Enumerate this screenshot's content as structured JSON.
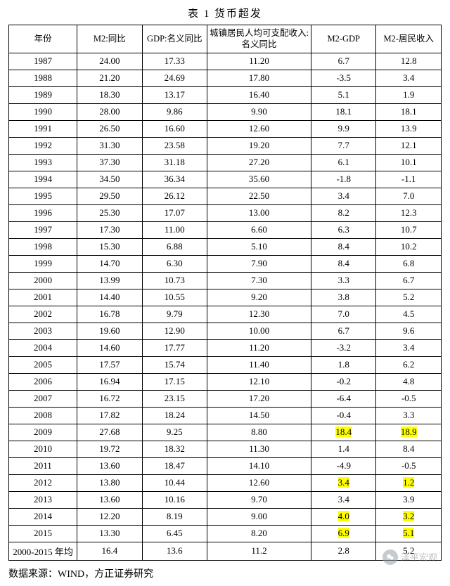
{
  "title": "表 1  货币超发",
  "columns": [
    "年份",
    "M2:同比",
    "GDP:名义同比",
    "城镇居民人均可支配收入:名义同比",
    "M2-GDP",
    "M2-居民收入"
  ],
  "rows": [
    {
      "y": "1987",
      "m2": "24.00",
      "gdp": "17.33",
      "urb": "11.20",
      "mg": "6.7",
      "mi": "12.8"
    },
    {
      "y": "1988",
      "m2": "21.20",
      "gdp": "24.69",
      "urb": "17.80",
      "mg": "-3.5",
      "mi": "3.4"
    },
    {
      "y": "1989",
      "m2": "18.30",
      "gdp": "13.17",
      "urb": "16.40",
      "mg": "5.1",
      "mi": "1.9"
    },
    {
      "y": "1990",
      "m2": "28.00",
      "gdp": "9.86",
      "urb": "9.90",
      "mg": "18.1",
      "mi": "18.1"
    },
    {
      "y": "1991",
      "m2": "26.50",
      "gdp": "16.60",
      "urb": "12.60",
      "mg": "9.9",
      "mi": "13.9"
    },
    {
      "y": "1992",
      "m2": "31.30",
      "gdp": "23.58",
      "urb": "19.20",
      "mg": "7.7",
      "mi": "12.1"
    },
    {
      "y": "1993",
      "m2": "37.30",
      "gdp": "31.18",
      "urb": "27.20",
      "mg": "6.1",
      "mi": "10.1"
    },
    {
      "y": "1994",
      "m2": "34.50",
      "gdp": "36.34",
      "urb": "35.60",
      "mg": "-1.8",
      "mi": "-1.1"
    },
    {
      "y": "1995",
      "m2": "29.50",
      "gdp": "26.12",
      "urb": "22.50",
      "mg": "3.4",
      "mi": "7.0"
    },
    {
      "y": "1996",
      "m2": "25.30",
      "gdp": "17.07",
      "urb": "13.00",
      "mg": "8.2",
      "mi": "12.3"
    },
    {
      "y": "1997",
      "m2": "17.30",
      "gdp": "11.00",
      "urb": "6.60",
      "mg": "6.3",
      "mi": "10.7"
    },
    {
      "y": "1998",
      "m2": "15.30",
      "gdp": "6.88",
      "urb": "5.10",
      "mg": "8.4",
      "mi": "10.2"
    },
    {
      "y": "1999",
      "m2": "14.70",
      "gdp": "6.30",
      "urb": "7.90",
      "mg": "8.4",
      "mi": "6.8"
    },
    {
      "y": "2000",
      "m2": "13.99",
      "gdp": "10.73",
      "urb": "7.30",
      "mg": "3.3",
      "mi": "6.7"
    },
    {
      "y": "2001",
      "m2": "14.40",
      "gdp": "10.55",
      "urb": "9.20",
      "mg": "3.8",
      "mi": "5.2"
    },
    {
      "y": "2002",
      "m2": "16.78",
      "gdp": "9.79",
      "urb": "12.30",
      "mg": "7.0",
      "mi": "4.5"
    },
    {
      "y": "2003",
      "m2": "19.60",
      "gdp": "12.90",
      "urb": "10.00",
      "mg": "6.7",
      "mi": "9.6"
    },
    {
      "y": "2004",
      "m2": "14.60",
      "gdp": "17.77",
      "urb": "11.20",
      "mg": "-3.2",
      "mi": "3.4"
    },
    {
      "y": "2005",
      "m2": "17.57",
      "gdp": "15.74",
      "urb": "11.40",
      "mg": "1.8",
      "mi": "6.2"
    },
    {
      "y": "2006",
      "m2": "16.94",
      "gdp": "17.15",
      "urb": "12.10",
      "mg": "-0.2",
      "mi": "4.8"
    },
    {
      "y": "2007",
      "m2": "16.72",
      "gdp": "23.15",
      "urb": "17.20",
      "mg": "-6.4",
      "mi": "-0.5"
    },
    {
      "y": "2008",
      "m2": "17.82",
      "gdp": "18.24",
      "urb": "14.50",
      "mg": "-0.4",
      "mi": "3.3"
    },
    {
      "y": "2009",
      "m2": "27.68",
      "gdp": "9.25",
      "urb": "8.80",
      "mg": "18.4",
      "mi": "18.9",
      "hl": [
        "mg",
        "mi"
      ]
    },
    {
      "y": "2010",
      "m2": "19.72",
      "gdp": "18.32",
      "urb": "11.30",
      "mg": "1.4",
      "mi": "8.4"
    },
    {
      "y": "2011",
      "m2": "13.60",
      "gdp": "18.47",
      "urb": "14.10",
      "mg": "-4.9",
      "mi": "-0.5"
    },
    {
      "y": "2012",
      "m2": "13.80",
      "gdp": "10.44",
      "urb": "12.60",
      "mg": "3.4",
      "mi": "1.2",
      "hl": [
        "mg",
        "mi"
      ]
    },
    {
      "y": "2013",
      "m2": "13.60",
      "gdp": "10.16",
      "urb": "9.70",
      "mg": "3.4",
      "mi": "3.9"
    },
    {
      "y": "2014",
      "m2": "12.20",
      "gdp": "8.19",
      "urb": "9.00",
      "mg": "4.0",
      "mi": "3.2",
      "hl": [
        "mg",
        "mi"
      ]
    },
    {
      "y": "2015",
      "m2": "13.30",
      "gdp": "6.45",
      "urb": "8.20",
      "mg": "6.9",
      "mi": "5.1",
      "hl": [
        "mg",
        "mi"
      ]
    },
    {
      "y": "2000-2015 年均",
      "m2": "16.4",
      "gdp": "13.6",
      "urb": "11.2",
      "mg": "2.8",
      "mi": "5.2"
    }
  ],
  "source": "数据来源：WIND，方正证券研究",
  "watermark": "泽平宏观"
}
